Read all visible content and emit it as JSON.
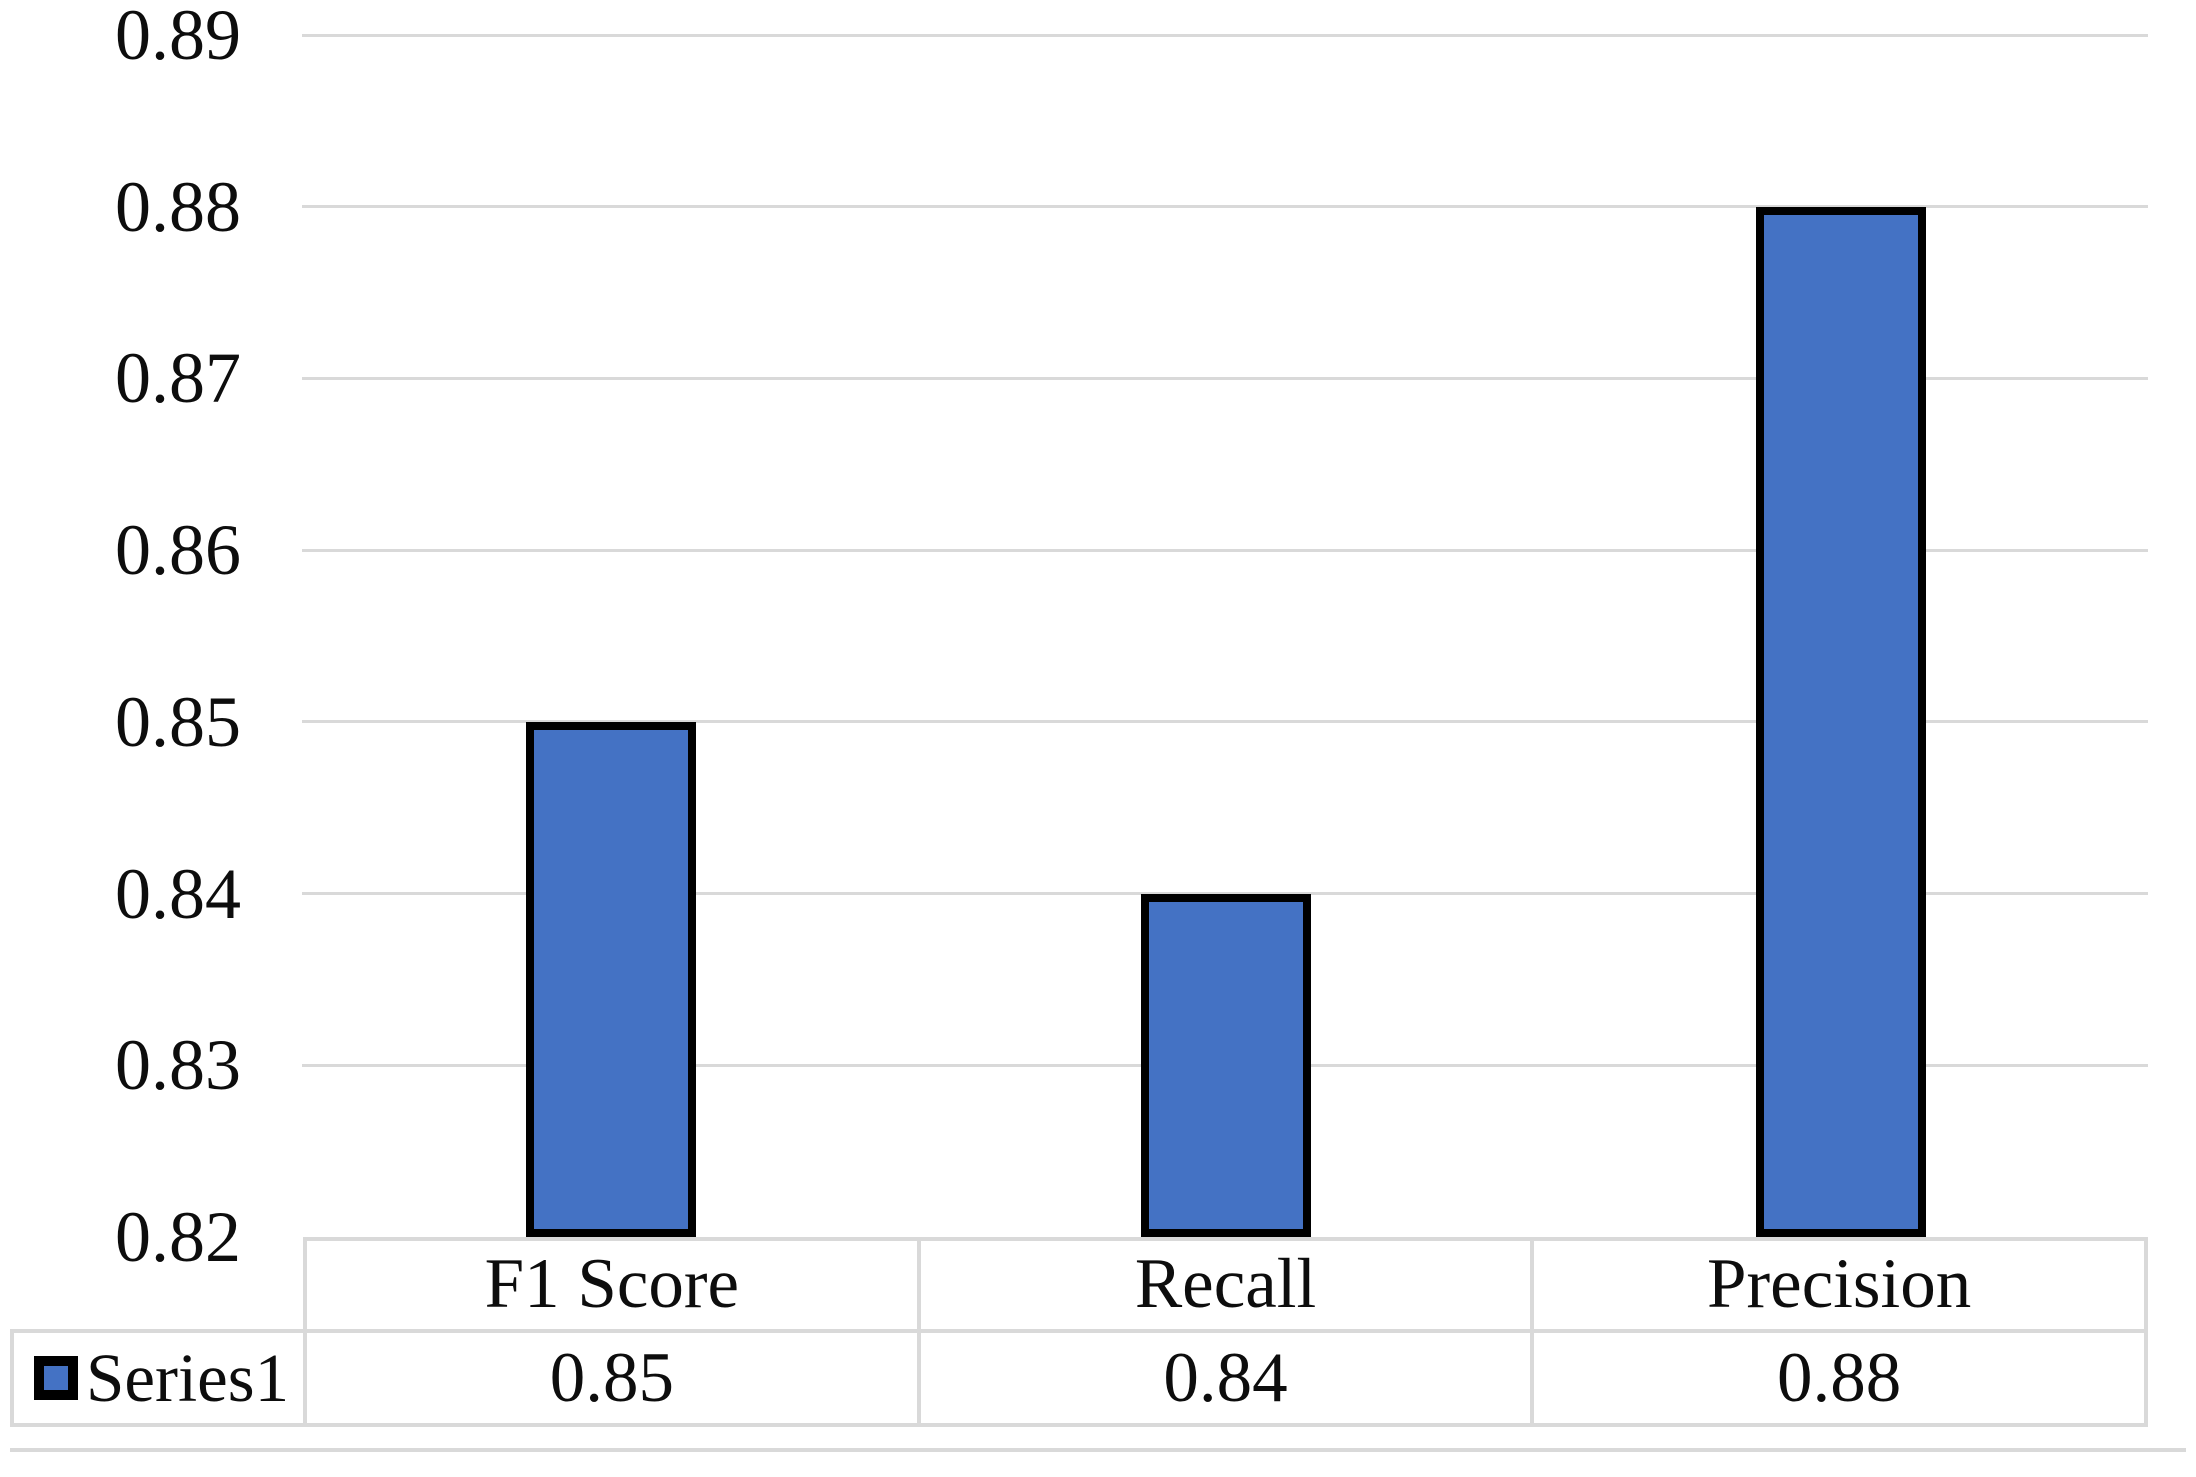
{
  "chart_data": {
    "type": "bar",
    "categories": [
      "F1 Score",
      "Recall",
      "Precision"
    ],
    "series": [
      {
        "name": "Series1",
        "values": [
          0.85,
          0.84,
          0.88
        ]
      }
    ],
    "table_values": [
      "0.85",
      "0.84",
      "0.88"
    ],
    "y_ticks": [
      "0.89",
      "0.88",
      "0.87",
      "0.86",
      "0.85",
      "0.84",
      "0.83",
      "0.82"
    ],
    "y_tick_values": [
      0.89,
      0.88,
      0.87,
      0.86,
      0.85,
      0.84,
      0.83,
      0.82
    ],
    "ylim": [
      0.82,
      0.89
    ],
    "grid": true,
    "legend_position": "data-table-bottom-left",
    "colors": {
      "bar_fill": "#4472C4",
      "bar_border": "#000000",
      "gridline": "#D9D9D9",
      "table_border": "#D9D9D9",
      "text": "#0D0D0D"
    }
  },
  "legend": {
    "series1_label": "Series1"
  }
}
